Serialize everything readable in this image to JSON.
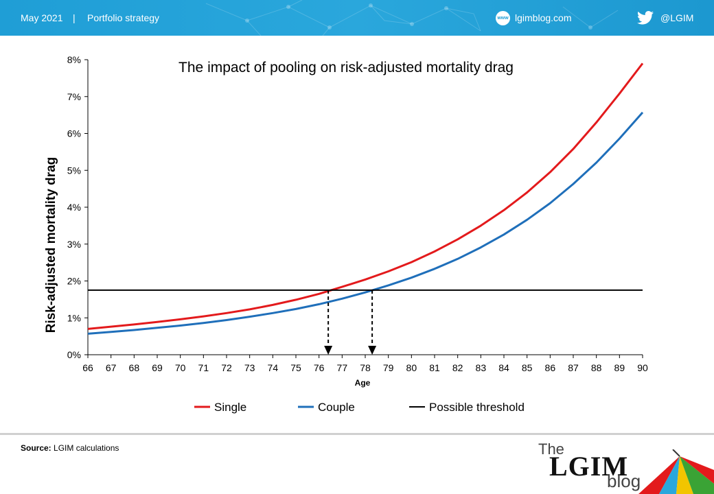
{
  "header": {
    "date": "May 2021",
    "separator": "|",
    "section": "Portfolio strategy",
    "www_icon": "www",
    "website": "lgimblog.com",
    "twitter_handle": "@LGIM",
    "icons": [
      "www-globe-icon",
      "twitter-bird-icon"
    ]
  },
  "footer": {
    "source_label": "Source:",
    "source_text": "LGIM calculations",
    "logo_the": "The",
    "logo_lgim": "LGIM",
    "logo_blog": "blog"
  },
  "colors": {
    "header_bg": "#1f9ed6",
    "single": "#e31a1c",
    "couple": "#1f6fba",
    "threshold": "#000000"
  },
  "chart_data": {
    "type": "line",
    "title": "The impact of pooling on risk-adjusted mortality drag",
    "xlabel": "Age",
    "ylabel": "Risk-adjusted mortality drag",
    "x": [
      66,
      67,
      68,
      69,
      70,
      71,
      72,
      73,
      74,
      75,
      76,
      77,
      78,
      79,
      80,
      81,
      82,
      83,
      84,
      85,
      86,
      87,
      88,
      89,
      90
    ],
    "ylim": [
      0,
      8
    ],
    "xlim": [
      66,
      90
    ],
    "yticks": [
      "0%",
      "1%",
      "2%",
      "3%",
      "4%",
      "5%",
      "6%",
      "7%",
      "8%"
    ],
    "grid": false,
    "legend_position": "bottom",
    "series": [
      {
        "name": "Single",
        "values": [
          0.7,
          0.76,
          0.82,
          0.89,
          0.96,
          1.04,
          1.13,
          1.23,
          1.35,
          1.49,
          1.65,
          1.84,
          2.04,
          2.26,
          2.51,
          2.8,
          3.13,
          3.5,
          3.92,
          4.4,
          4.95,
          5.58,
          6.3,
          7.08,
          7.9
        ]
      },
      {
        "name": "Couple",
        "values": [
          0.57,
          0.62,
          0.67,
          0.73,
          0.79,
          0.86,
          0.94,
          1.03,
          1.13,
          1.24,
          1.37,
          1.52,
          1.69,
          1.88,
          2.09,
          2.33,
          2.6,
          2.91,
          3.26,
          3.66,
          4.11,
          4.63,
          5.21,
          5.86,
          6.57
        ]
      },
      {
        "name": "Possible threshold",
        "values": [
          1.75,
          1.75,
          1.75,
          1.75,
          1.75,
          1.75,
          1.75,
          1.75,
          1.75,
          1.75,
          1.75,
          1.75,
          1.75,
          1.75,
          1.75,
          1.75,
          1.75,
          1.75,
          1.75,
          1.75,
          1.75,
          1.75,
          1.75,
          1.75,
          1.75
        ]
      }
    ],
    "annotations": [
      {
        "type": "dashed-arrow-down",
        "x": 76.4,
        "from_y": 1.75,
        "to_y": 0
      },
      {
        "type": "dashed-arrow-down",
        "x": 78.3,
        "from_y": 1.75,
        "to_y": 0
      }
    ]
  }
}
